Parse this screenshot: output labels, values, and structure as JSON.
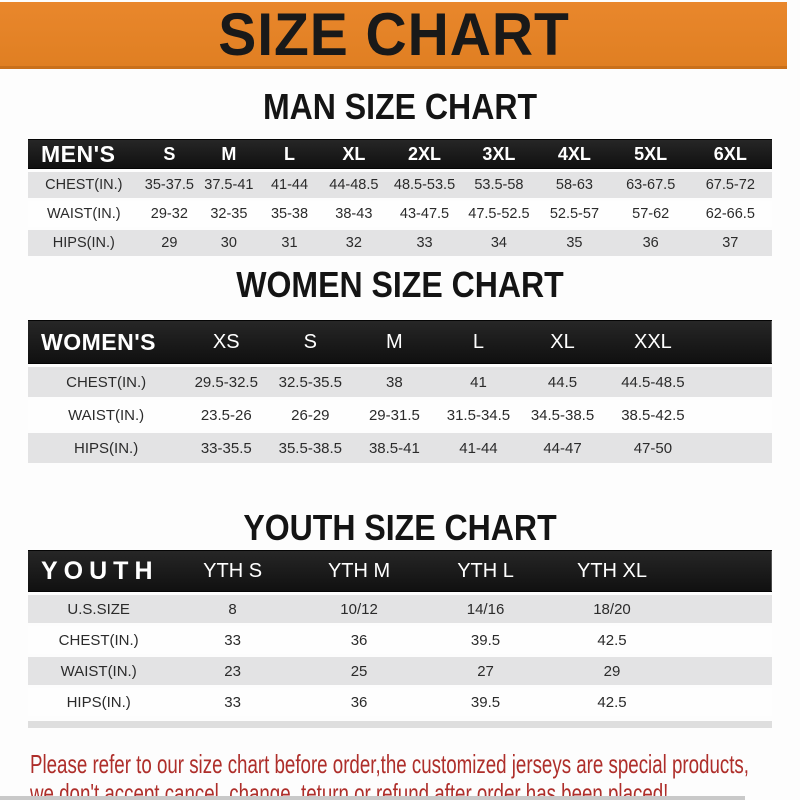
{
  "banner": {
    "title": "SIZE CHART"
  },
  "men": {
    "heading": "MAN SIZE CHART",
    "header_label": "MEN'S",
    "sizes": [
      "S",
      "M",
      "L",
      "XL",
      "2XL",
      "3XL",
      "4XL",
      "5XL",
      "6XL"
    ],
    "rows": [
      {
        "label": "CHEST(IN.)",
        "values": [
          "35-37.5",
          "37.5-41",
          "41-44",
          "44-48.5",
          "48.5-53.5",
          "53.5-58",
          "58-63",
          "63-67.5",
          "67.5-72"
        ]
      },
      {
        "label": "WAIST(IN.)",
        "values": [
          "29-32",
          "32-35",
          "35-38",
          "38-43",
          "43-47.5",
          "47.5-52.5",
          "52.5-57",
          "57-62",
          "62-66.5"
        ]
      },
      {
        "label": "HIPS(IN.)",
        "values": [
          "29",
          "30",
          "31",
          "32",
          "33",
          "34",
          "35",
          "36",
          "37"
        ]
      }
    ]
  },
  "women": {
    "heading": "WOMEN SIZE CHART",
    "header_label": "WOMEN'S",
    "sizes": [
      "XS",
      "S",
      "M",
      "L",
      "XL",
      "XXL"
    ],
    "rows": [
      {
        "label": "CHEST(IN.)",
        "values": [
          "29.5-32.5",
          "32.5-35.5",
          "38",
          "41",
          "44.5",
          "44.5-48.5"
        ]
      },
      {
        "label": "WAIST(IN.)",
        "values": [
          "23.5-26",
          "26-29",
          "29-31.5",
          "31.5-34.5",
          "34.5-38.5",
          "38.5-42.5"
        ]
      },
      {
        "label": "HIPS(IN.)",
        "values": [
          "33-35.5",
          "35.5-38.5",
          "38.5-41",
          "41-44",
          "44-47",
          "47-50"
        ]
      }
    ]
  },
  "youth": {
    "heading": "YOUTH SIZE CHART",
    "header_label": "YOUTH",
    "sizes": [
      "YTH S",
      "YTH M",
      "YTH L",
      "YTH XL"
    ],
    "rows": [
      {
        "label": "U.S.SIZE",
        "values": [
          "8",
          "10/12",
          "14/16",
          "18/20"
        ]
      },
      {
        "label": "CHEST(IN.)",
        "values": [
          "33",
          "36",
          "39.5",
          "42.5"
        ]
      },
      {
        "label": "WAIST(IN.)",
        "values": [
          "23",
          "25",
          "27",
          "29"
        ]
      },
      {
        "label": "HIPS(IN.)",
        "values": [
          "33",
          "36",
          "39.5",
          "42.5"
        ]
      }
    ]
  },
  "disclaimer": {
    "line1": "Please refer to our size chart before order,the customized jerseys are special products,",
    "line2": "we don't accept cancel, change, teturn or refund after order has been placed!"
  },
  "colors": {
    "banner_bg": "#E9872C",
    "banner_edge": "#C9701A",
    "bar_bg": "#1A1A1A",
    "bar_text": "#FFFFFF",
    "row_alt": "#E3E3E4",
    "row_base": "#FEFEFE",
    "table_text": "#2B2B2B",
    "heading_text": "#141414",
    "disclaimer_text": "#AE2E2A"
  }
}
